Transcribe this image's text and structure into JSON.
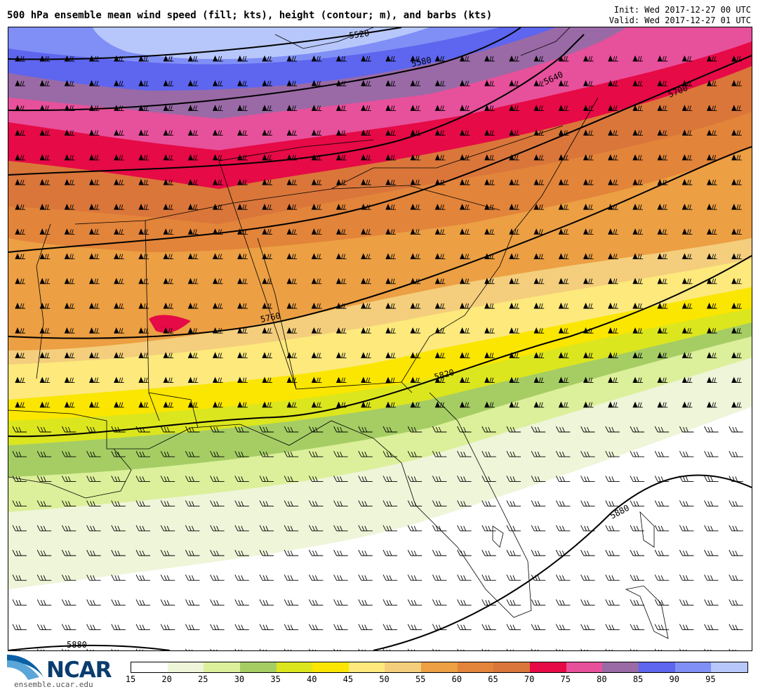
{
  "header": {
    "title": "500 hPa ensemble mean wind speed (fill; kts), height (contour; m), and barbs (kts)",
    "init": "Init: Wed 2017-12-27 00 UTC",
    "valid": "Valid: Wed 2017-12-27 01 UTC"
  },
  "map": {
    "contours": [
      {
        "label": "5520"
      },
      {
        "label": "5580"
      },
      {
        "label": "5640"
      },
      {
        "label": "5700"
      },
      {
        "label": "5760"
      },
      {
        "label": "5820"
      },
      {
        "label": "5880"
      },
      {
        "label": "5880"
      }
    ]
  },
  "colorbar": {
    "ticks": [
      "15",
      "20",
      "25",
      "30",
      "35",
      "40",
      "45",
      "50",
      "55",
      "60",
      "65",
      "70",
      "75",
      "80",
      "85",
      "90",
      "95"
    ],
    "colors": [
      "#ffffff",
      "#eef5d9",
      "#dcef9a",
      "#a5cd64",
      "#dce61e",
      "#fae600",
      "#fde97c",
      "#f4ce7c",
      "#ec9f43",
      "#e2843a",
      "#da763a",
      "#e60a46",
      "#e7509b",
      "#9a6aa6",
      "#5e65ee",
      "#7f8ff6",
      "#b7c7fb"
    ]
  },
  "branding": {
    "logo_text": "NCAR",
    "url": "ensemble.ucar.edu"
  }
}
